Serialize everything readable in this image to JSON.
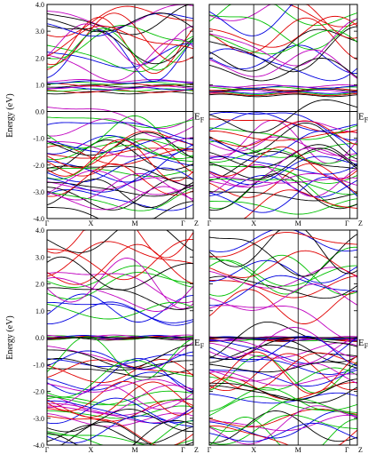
{
  "figure": {
    "ylabel_top": "Energy (eV)",
    "ylabel_bottom": "Energy (eV)",
    "fermi_label": "E",
    "fermi_sub": "F"
  },
  "chart_data": [
    {
      "type": "line",
      "panel": "top-left",
      "ylim": [
        -4.0,
        4.0
      ],
      "yticks": [
        4.0,
        3.0,
        2.0,
        1.0,
        0.0,
        -1.0,
        -2.0,
        -3.0,
        -4.0
      ],
      "ytick_labels": [
        "4.0",
        "3.0",
        "2.0",
        "1.0",
        "0.0",
        "-1.0",
        "-2.0",
        "-3.0",
        "-4.0"
      ],
      "kpoints": [
        "Γ",
        "X",
        "M",
        "Γ",
        "Z"
      ],
      "kpos": [
        0.0,
        0.3,
        0.6,
        0.95,
        1.0
      ],
      "gap": [
        0.15,
        0.65
      ],
      "fermi": 0.0,
      "fermi_label": true,
      "colors": [
        "#000000",
        "#e00000",
        "#00c000",
        "#0000e0",
        "#c000c0"
      ],
      "bands": {
        "flat_cluster": [
          0.7,
          1.15
        ],
        "cond_upper": [
          1.2,
          4.0
        ],
        "valence": [
          -4.0,
          -0.1
        ]
      }
    },
    {
      "type": "line",
      "panel": "top-right",
      "ylim": [
        -4.0,
        4.0
      ],
      "yticks": [
        4.0,
        3.0,
        2.0,
        1.0,
        0.0,
        -1.0,
        -2.0,
        -3.0,
        -4.0
      ],
      "ytick_labels": [],
      "kpoints": [
        "Γ",
        "X",
        "M",
        "Γ",
        "Z"
      ],
      "kpos": [
        0.0,
        0.3,
        0.6,
        0.95,
        1.0
      ],
      "gap": [
        0.1,
        0.6
      ],
      "fermi": 0.0,
      "fermi_label": true,
      "colors": [
        "#000000",
        "#e00000",
        "#00c000",
        "#0000e0",
        "#c000c0"
      ],
      "bands": {
        "flat_cluster": [
          0.6,
          0.95
        ],
        "cond_upper": [
          1.0,
          4.0
        ],
        "valence": [
          -4.0,
          -0.05
        ]
      }
    },
    {
      "type": "line",
      "panel": "bottom-left",
      "ylim": [
        -4.0,
        4.0
      ],
      "yticks": [
        4.0,
        3.0,
        2.0,
        1.0,
        0.0,
        -1.0,
        -2.0,
        -3.0,
        -4.0
      ],
      "ytick_labels": [
        "4.0",
        "3.0",
        "2.0",
        "1.0",
        "0.0",
        "-1.0",
        "-2.0",
        "-3.0",
        "-4.0"
      ],
      "kpoints": [
        "Γ",
        "X",
        "M",
        "Γ",
        "Z"
      ],
      "kpos": [
        0.0,
        0.3,
        0.6,
        0.95,
        1.0
      ],
      "gap": [
        0.05,
        0.3
      ],
      "fermi": 0.0,
      "fermi_label": true,
      "colors": [
        "#000000",
        "#e00000",
        "#00c000",
        "#0000e0",
        "#c000c0"
      ],
      "bands": {
        "flat_cluster": [
          -0.05,
          0.05
        ],
        "cond_upper": [
          0.3,
          4.0
        ],
        "valence": [
          -4.0,
          -0.5
        ]
      }
    },
    {
      "type": "line",
      "panel": "bottom-right",
      "ylim": [
        -4.0,
        4.0
      ],
      "yticks": [
        4.0,
        3.0,
        2.0,
        1.0,
        0.0,
        -1.0,
        -2.0,
        -3.0,
        -4.0
      ],
      "ytick_labels": [],
      "kpoints": [
        "Γ",
        "X",
        "M",
        "Γ",
        "Z"
      ],
      "kpos": [
        0.0,
        0.3,
        0.6,
        0.95,
        1.0
      ],
      "gap": [
        0.0,
        0.3
      ],
      "fermi": 0.0,
      "fermi_label": true,
      "colors": [
        "#000000",
        "#e00000",
        "#00c000",
        "#0000e0",
        "#c000c0"
      ],
      "bands": {
        "flat_cluster": [
          -0.1,
          0.0
        ],
        "cond_upper": [
          0.3,
          4.0
        ],
        "valence": [
          -4.0,
          -0.1
        ]
      }
    }
  ]
}
